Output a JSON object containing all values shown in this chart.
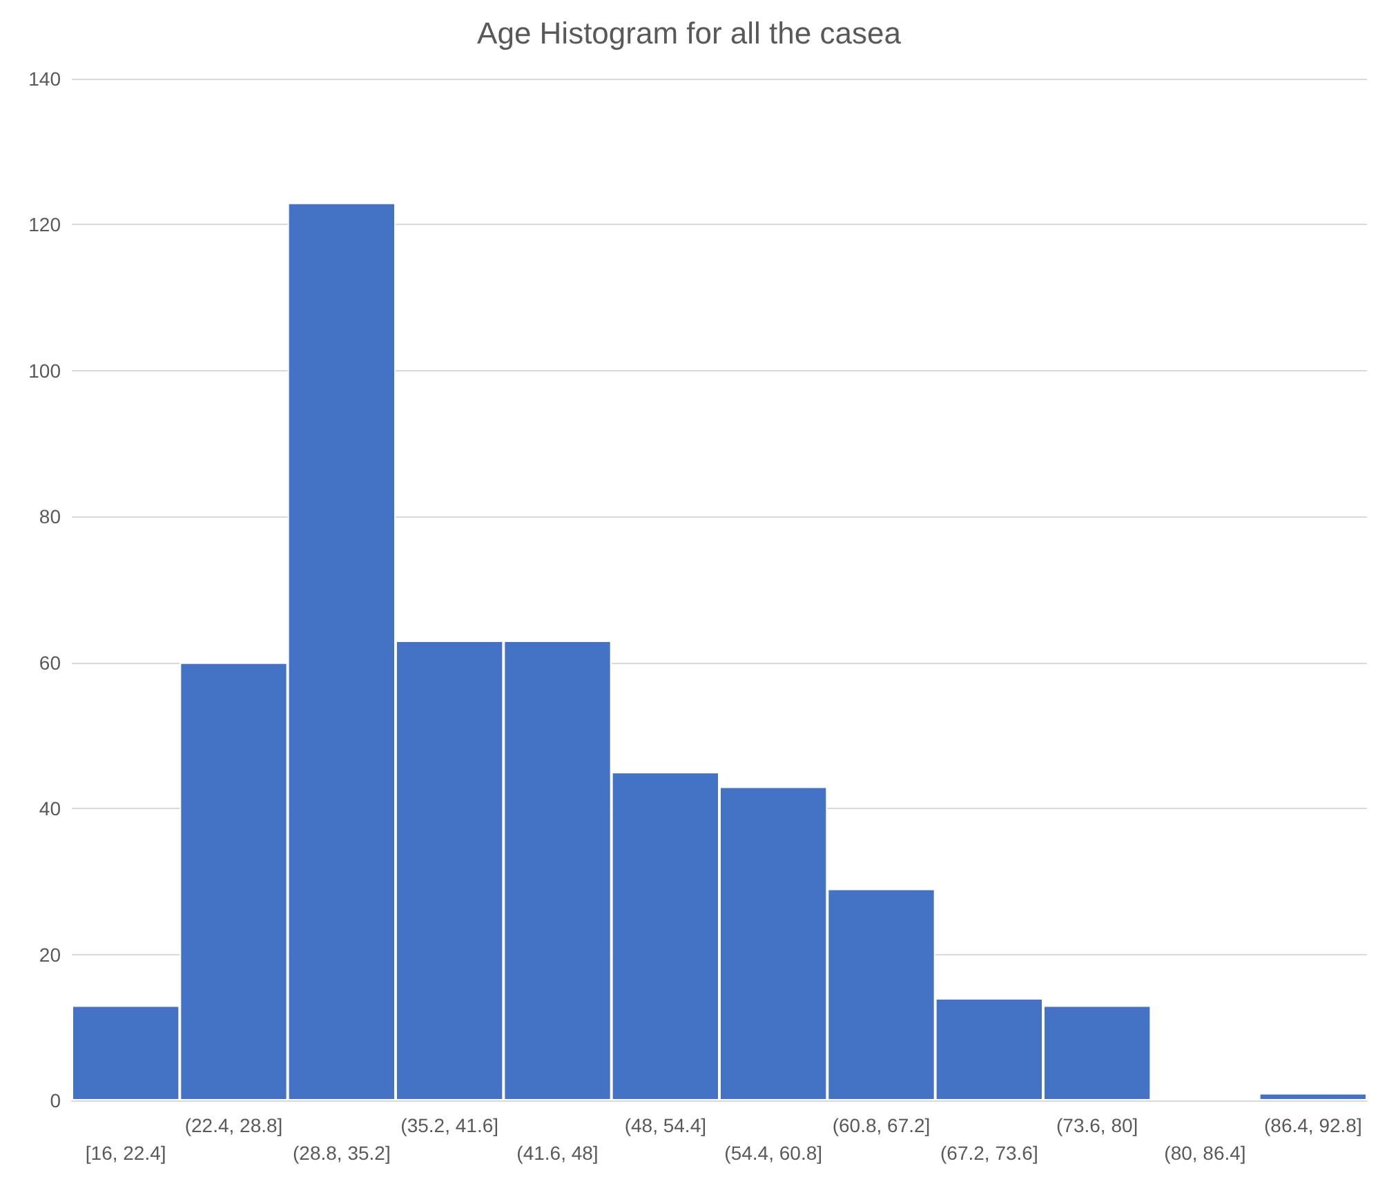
{
  "chart_data": {
    "type": "bar",
    "title": "Age Histogram for all the casea",
    "categories": [
      "[16, 22.4]",
      "(22.4, 28.8]",
      "(28.8, 35.2]",
      "(35.2, 41.6]",
      "(41.6, 48]",
      "(48, 54.4]",
      "(54.4, 60.8]",
      "(60.8, 67.2]",
      "(67.2, 73.6]",
      "(73.6, 80]",
      "(80, 86.4]",
      "(86.4, 92.8]"
    ],
    "values": [
      13,
      60,
      123,
      63,
      63,
      45,
      43,
      29,
      14,
      13,
      0,
      1
    ],
    "color": "#4472c4",
    "ylim": [
      0,
      140
    ],
    "yticks": [
      0,
      20,
      40,
      60,
      80,
      100,
      120,
      140
    ],
    "grid": "y"
  }
}
